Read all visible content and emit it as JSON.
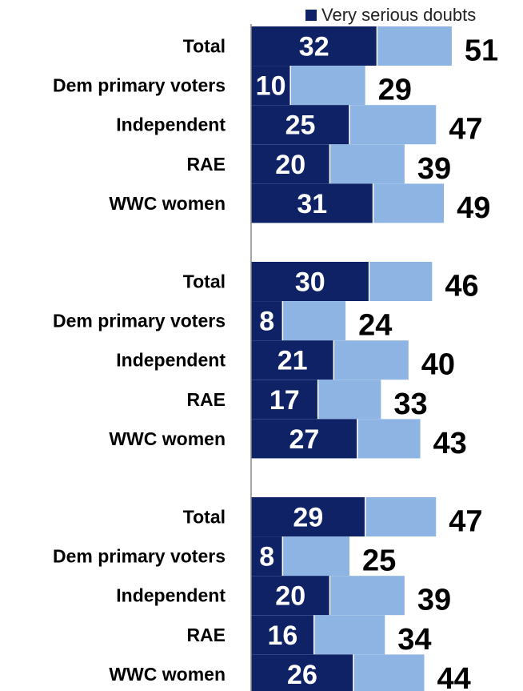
{
  "chart_data": {
    "type": "bar",
    "orientation": "horizontal",
    "stacked": true,
    "legend": [
      {
        "label": "Very serious doubts",
        "color": "#0f2266"
      }
    ],
    "colors": {
      "inner": "#0f2266",
      "outer": "#8eb4e3",
      "inner_label": "#ffffff",
      "total_label": "#000000"
    },
    "xlim": [
      0,
      60
    ],
    "grid": false,
    "groups": [
      {
        "categories": [
          "Total",
          "Dem primary voters",
          "Independent",
          "RAE",
          "WWC women"
        ],
        "very_serious": [
          32,
          10,
          25,
          20,
          31
        ],
        "total": [
          51,
          29,
          47,
          39,
          49
        ]
      },
      {
        "categories": [
          "Total",
          "Dem primary voters",
          "Independent",
          "RAE",
          "WWC women"
        ],
        "very_serious": [
          30,
          8,
          21,
          17,
          27
        ],
        "total": [
          46,
          24,
          40,
          33,
          43
        ]
      },
      {
        "categories": [
          "Total",
          "Dem primary voters",
          "Independent",
          "RAE",
          "WWC women"
        ],
        "very_serious": [
          29,
          8,
          20,
          16,
          26
        ],
        "total": [
          47,
          25,
          39,
          34,
          44
        ]
      }
    ]
  }
}
